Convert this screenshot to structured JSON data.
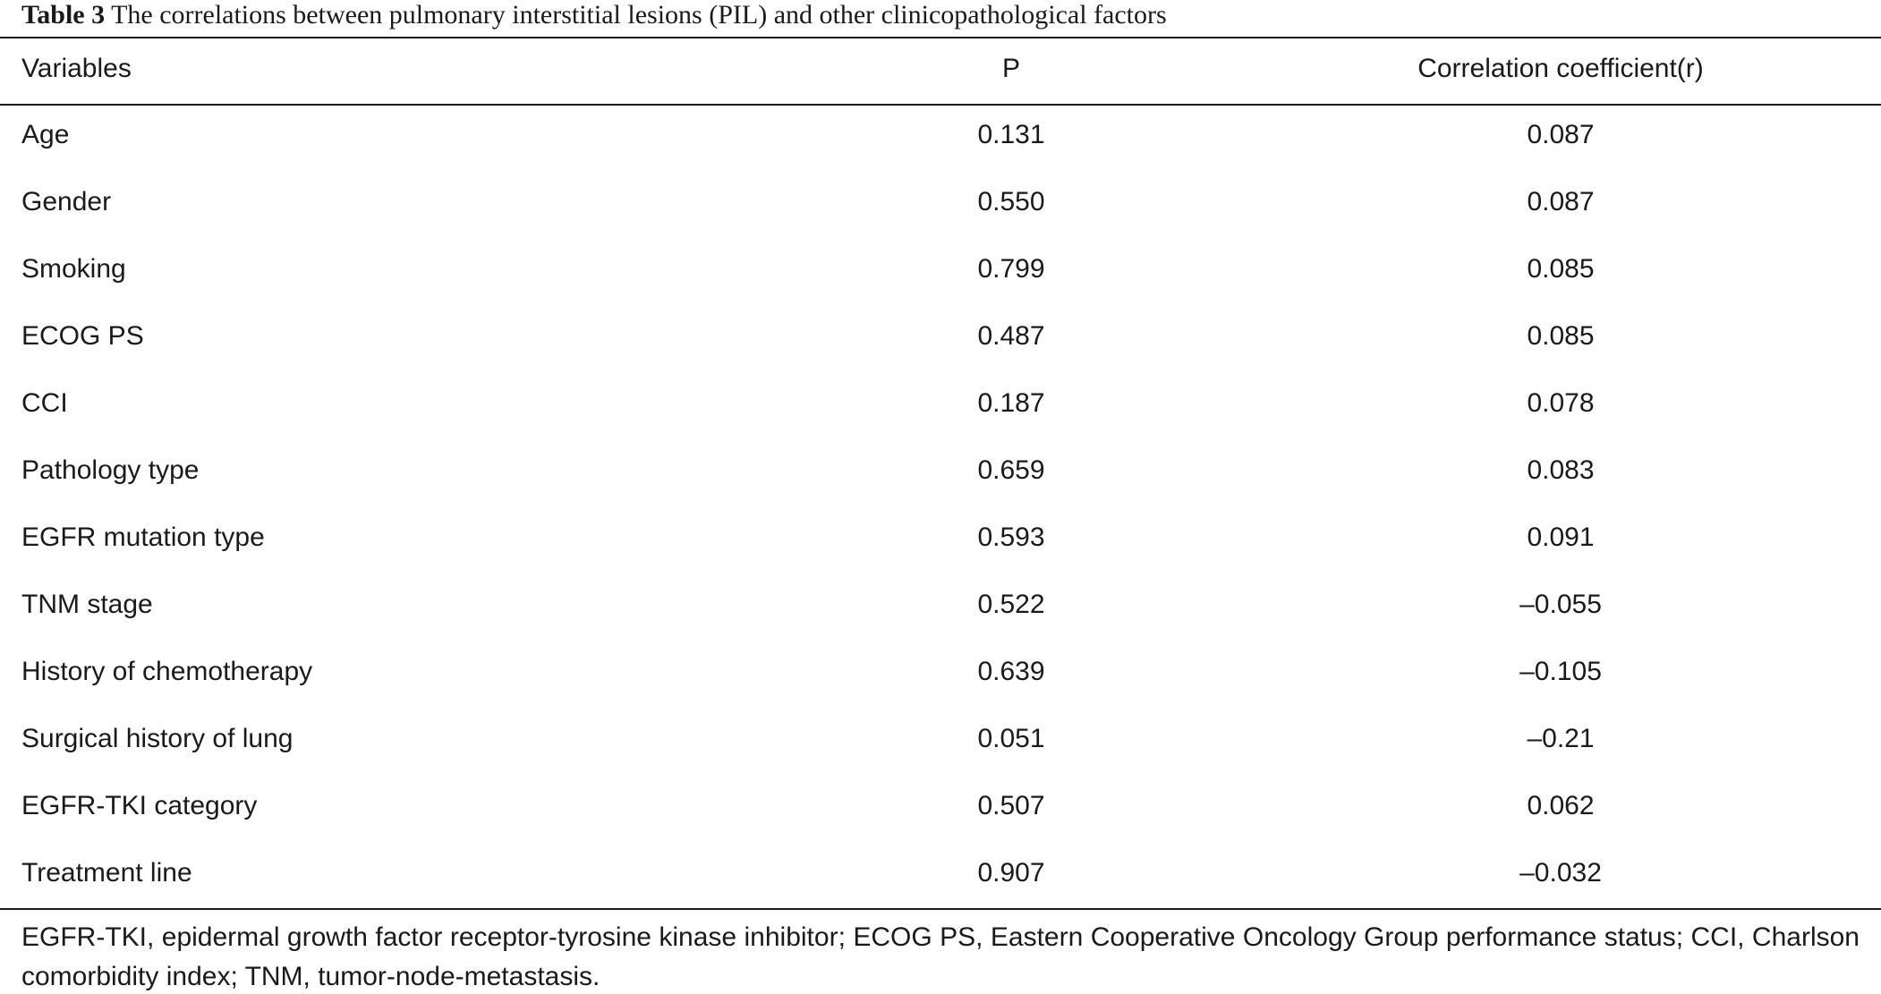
{
  "title": {
    "label": "Table 3",
    "text": "The correlations between pulmonary interstitial lesions (PIL) and other clinicopathological factors"
  },
  "table": {
    "header": [
      "Variables",
      "P",
      "Correlation coefficient(r)"
    ],
    "rows": [
      [
        "Age",
        "0.131",
        "0.087"
      ],
      [
        "Gender",
        "0.550",
        "0.087"
      ],
      [
        "Smoking",
        "0.799",
        "0.085"
      ],
      [
        "ECOG PS",
        "0.487",
        "0.085"
      ],
      [
        "CCI",
        "0.187",
        "0.078"
      ],
      [
        "Pathology type",
        "0.659",
        "0.083"
      ],
      [
        "EGFR mutation type",
        "0.593",
        "0.091"
      ],
      [
        "TNM stage",
        "0.522",
        "–0.055"
      ],
      [
        "History of chemotherapy",
        "0.639",
        "–0.105"
      ],
      [
        "Surgical history of lung",
        "0.051",
        "–0.21"
      ],
      [
        "EGFR-TKI category",
        "0.507",
        "0.062"
      ],
      [
        "Treatment line",
        "0.907",
        "–0.032"
      ]
    ]
  },
  "footnote": "EGFR-TKI, epidermal growth factor receptor-tyrosine kinase inhibitor; ECOG PS, Eastern Cooperative Oncology Group performance status; CCI, Charlson comorbidity index; TNM, tumor-node-metastasis."
}
